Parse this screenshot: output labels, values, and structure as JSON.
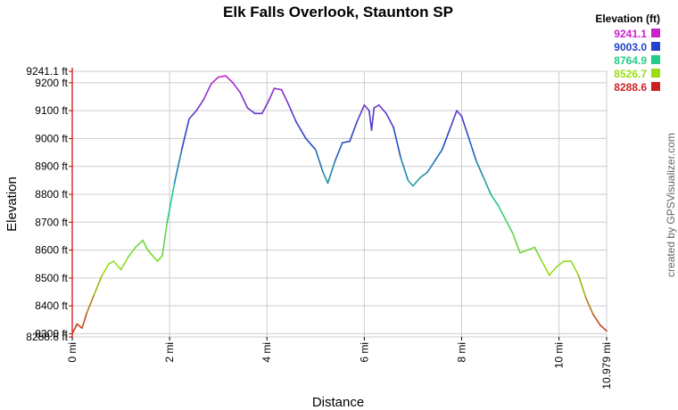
{
  "chart_data": {
    "type": "line",
    "title": "Elk Falls Overlook, Staunton SP",
    "xlabel": "Distance",
    "ylabel": "Elevation",
    "xlim": [
      0,
      10.979
    ],
    "ylim": [
      8288.6,
      9241.1
    ],
    "x_ticks": [
      "0 mi",
      "2 mi",
      "4 mi",
      "6 mi",
      "8 mi",
      "10 mi",
      "10.979 mi"
    ],
    "y_ticks": [
      "8288.6 ft",
      "8300 ft",
      "8400 ft",
      "8500 ft",
      "8600 ft",
      "8700 ft",
      "8800 ft",
      "8900 ft",
      "9000 ft",
      "9100 ft",
      "9200 ft",
      "9241.1 ft"
    ],
    "grid": true,
    "series": [
      {
        "x": [
          0,
          0.1,
          0.2,
          0.3,
          0.45,
          0.6,
          0.75,
          0.85,
          1.0,
          1.15,
          1.3,
          1.45,
          1.55,
          1.65,
          1.75,
          1.85,
          1.95,
          2.1,
          2.25,
          2.4,
          2.55,
          2.7,
          2.85,
          3.0,
          3.15,
          3.3,
          3.45,
          3.6,
          3.75,
          3.9,
          4.05,
          4.15,
          4.3,
          4.45,
          4.6,
          4.8,
          5.0,
          5.15,
          5.25,
          5.4,
          5.55,
          5.7,
          5.85,
          6.0,
          6.1,
          6.15,
          6.2,
          6.3,
          6.45,
          6.6,
          6.75,
          6.9,
          7.0,
          7.15,
          7.3,
          7.45,
          7.6,
          7.75,
          7.9,
          8.0,
          8.15,
          8.3,
          8.45,
          8.6,
          8.75,
          8.9,
          9.05,
          9.2,
          9.35,
          9.5,
          9.65,
          9.8,
          9.95,
          10.1,
          10.25,
          10.4,
          10.55,
          10.7,
          10.85,
          10.979
        ],
        "y": [
          8300,
          8335,
          8320,
          8375,
          8440,
          8505,
          8550,
          8560,
          8530,
          8575,
          8610,
          8635,
          8600,
          8580,
          8560,
          8580,
          8700,
          8840,
          8960,
          9070,
          9100,
          9140,
          9195,
          9220,
          9225,
          9200,
          9165,
          9110,
          9090,
          9090,
          9140,
          9180,
          9175,
          9120,
          9060,
          9000,
          8960,
          8880,
          8840,
          8920,
          8985,
          8990,
          9060,
          9120,
          9100,
          9030,
          9110,
          9120,
          9090,
          9040,
          8930,
          8850,
          8830,
          8860,
          8880,
          8920,
          8960,
          9030,
          9100,
          9080,
          9000,
          8920,
          8860,
          8800,
          8760,
          8710,
          8660,
          8590,
          8600,
          8610,
          8560,
          8510,
          8540,
          8560,
          8560,
          8510,
          8430,
          8370,
          8330,
          8310
        ]
      }
    ],
    "legend": {
      "title": "Elevation (ft)",
      "placement": "top-right",
      "entries": [
        {
          "label": "9241.1",
          "color": "#cc22cc"
        },
        {
          "label": "9003.0",
          "color": "#2244cc"
        },
        {
          "label": "8764.9",
          "color": "#22cc88"
        },
        {
          "label": "8526.7",
          "color": "#99dd11"
        },
        {
          "label": "8288.6",
          "color": "#cc2222"
        }
      ]
    },
    "colors": {
      "y_axis": "#cc0000",
      "grid": "#cccccc"
    }
  },
  "credit": "created by GPSVisualizer.com"
}
